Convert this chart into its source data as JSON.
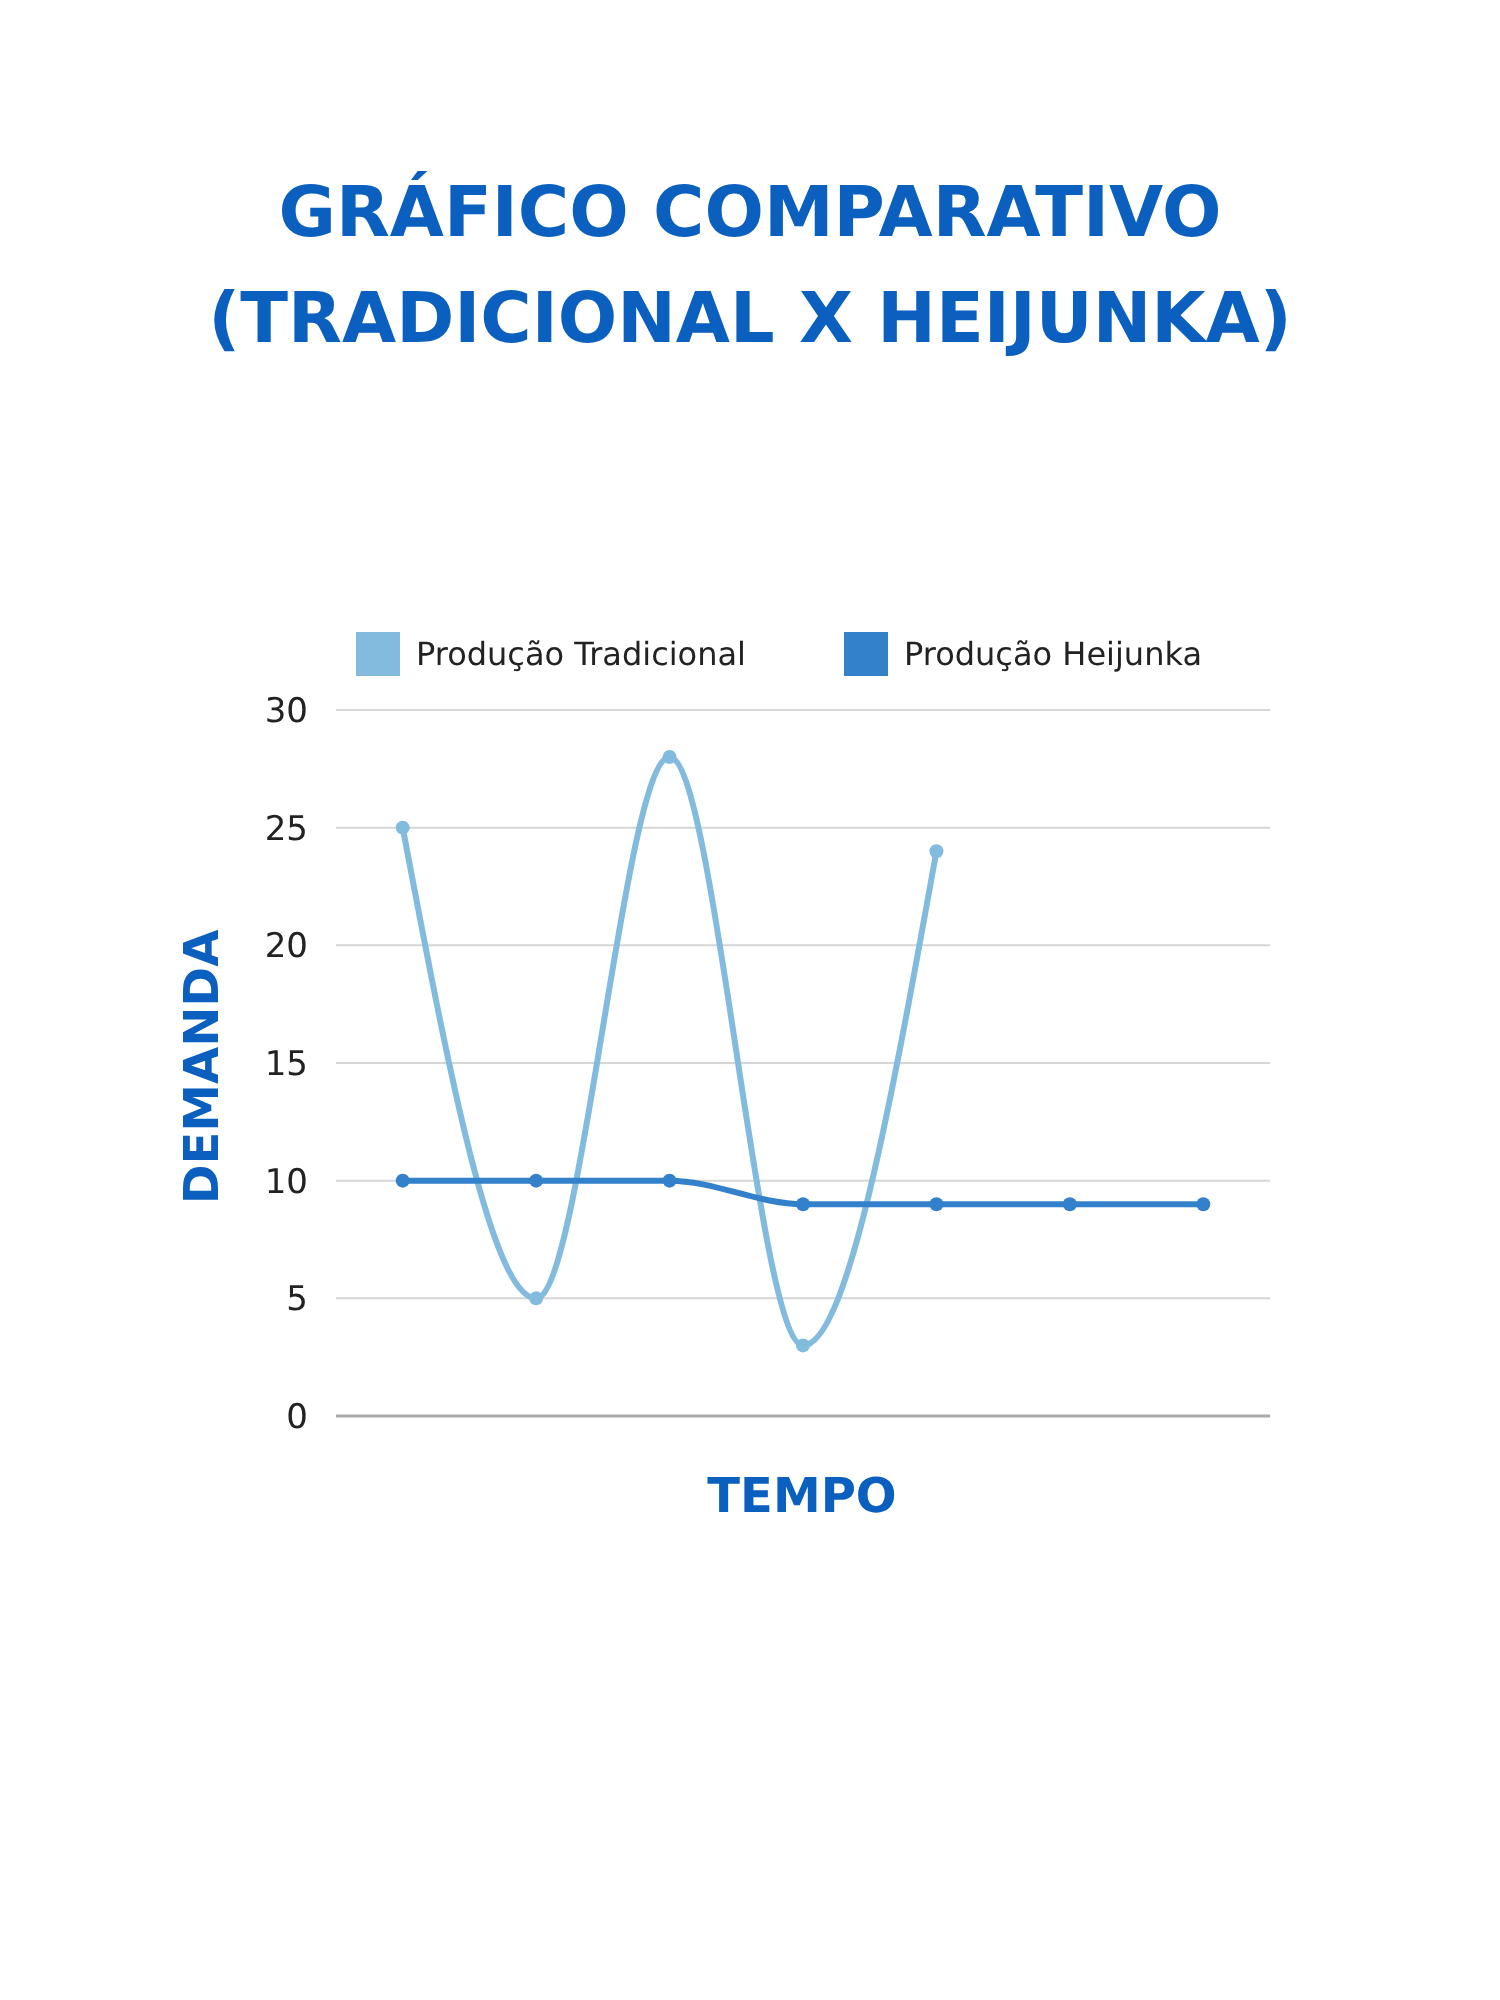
{
  "chart_data": {
    "type": "line",
    "title": "GRÁFICO COMPARATIVO (TRADICIONAL X HEIJUNKA)",
    "xlabel": "TEMPO",
    "ylabel": "DEMANDA",
    "categories": [
      null,
      null,
      null,
      null,
      null,
      null,
      null
    ],
    "series": [
      {
        "name": "Produção Tradicional",
        "color": "#82bbdd",
        "values": [
          25,
          5,
          28,
          3,
          24,
          null,
          null
        ]
      },
      {
        "name": "Produção Heijunka",
        "color": "#3381cb",
        "values": [
          10,
          10,
          10,
          9,
          9,
          9,
          9
        ]
      }
    ],
    "ylim": [
      0,
      30
    ],
    "yticks": [
      0,
      5,
      10,
      15,
      20,
      25,
      30
    ],
    "grid": "y",
    "legend": "top",
    "marker": "circle",
    "line_style": "solid"
  }
}
